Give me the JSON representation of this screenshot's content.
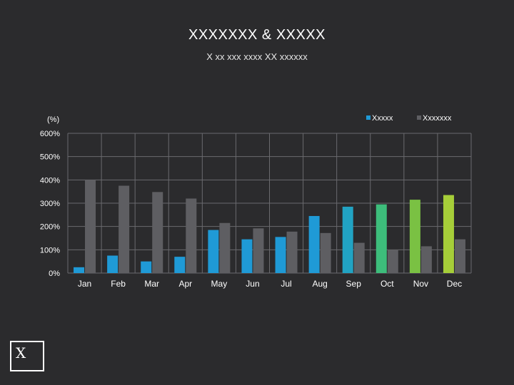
{
  "header": {
    "title": "XXXXXXX & XXXXX",
    "subtitle": "X xx xxx xxxx XX xxxxxx"
  },
  "logo": {
    "text": "X"
  },
  "chart_data": {
    "type": "bar",
    "title": "XXXXXXX & XXXXX",
    "subtitle": "X xx xxx xxxx XX xxxxxx",
    "ylabel": "(%)",
    "xlabel": "",
    "ylim": [
      0,
      600
    ],
    "yticks": [
      0,
      100,
      200,
      300,
      400,
      500,
      600
    ],
    "ytick_labels": [
      "0%",
      "100%",
      "200%",
      "300%",
      "400%",
      "500%",
      "600%"
    ],
    "grid": true,
    "legend_position": "top-right",
    "categories": [
      "Jan",
      "Feb",
      "Mar",
      "Apr",
      "May",
      "Jun",
      "Jul",
      "Aug",
      "Sep",
      "Oct",
      "Nov",
      "Dec"
    ],
    "series": [
      {
        "name": "Xxxxx",
        "legend_color": "#1f9ad6",
        "values": [
          25,
          75,
          50,
          70,
          185,
          145,
          155,
          245,
          285,
          295,
          315,
          335
        ],
        "colors": [
          "#1f9ad6",
          "#1f9ad6",
          "#1f9ad6",
          "#1f9ad6",
          "#1f9ad6",
          "#1f9ad6",
          "#1f9ad6",
          "#1f9ad6",
          "#21a3c3",
          "#3dbd7b",
          "#7ac143",
          "#a6ce39"
        ]
      },
      {
        "name": "Xxxxxxx",
        "legend_color": "#5e5e62",
        "values": [
          400,
          375,
          348,
          320,
          215,
          192,
          178,
          172,
          130,
          100,
          115,
          145
        ],
        "colors": [
          "#5e5e62",
          "#5e5e62",
          "#5e5e62",
          "#5e5e62",
          "#5e5e62",
          "#5e5e62",
          "#5e5e62",
          "#5e5e62",
          "#5e5e62",
          "#5e5e62",
          "#5e5e62",
          "#5e5e62"
        ]
      }
    ]
  }
}
